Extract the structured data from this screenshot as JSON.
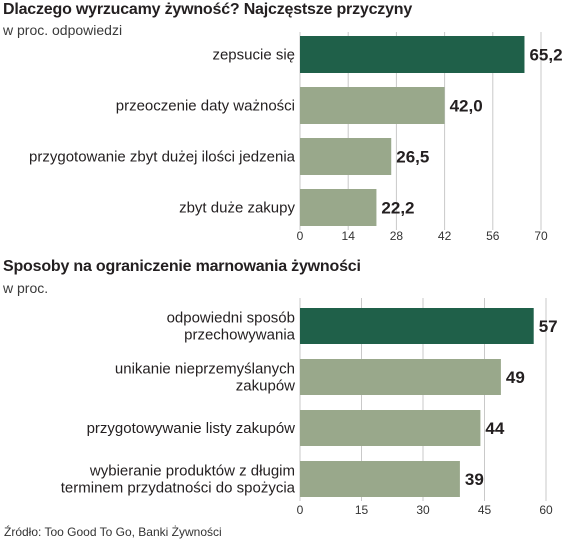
{
  "colors": {
    "highlight": "#1f6049",
    "bar": "#99a88b",
    "gridline": "#c9c9c9",
    "text": "#231f20"
  },
  "chart_data": [
    {
      "type": "bar",
      "orientation": "horizontal",
      "title": "Dlaczego wyrzucamy żywność? Najczęstsze przyczyny",
      "subtitle": "w proc. odpowiedzi",
      "categories": [
        "zepsucie się",
        "przeoczenie daty ważności",
        "przygotowanie zbyt dużej ilości jedzenia",
        "zbyt duże zakupy"
      ],
      "values": [
        65.2,
        42.0,
        26.5,
        22.2
      ],
      "value_labels": [
        "65,2",
        "42,0",
        "26,5",
        "22,2"
      ],
      "highlight_index": 0,
      "xlim": [
        0,
        70
      ],
      "xticks": [
        0,
        14,
        28,
        42,
        56,
        70
      ],
      "grid": true
    },
    {
      "type": "bar",
      "orientation": "horizontal",
      "title": "Sposoby na ograniczenie marnowania żywności",
      "subtitle": "w proc.",
      "categories": [
        [
          "odpowiedni sposób",
          "przechowywania"
        ],
        [
          "unikanie nieprzemyślanych",
          "zakupów"
        ],
        [
          "przygotowywanie listy zakupów"
        ],
        [
          "wybieranie produktów z długim",
          "terminem przydatności do spożycia"
        ]
      ],
      "values": [
        57,
        49,
        44,
        39
      ],
      "value_labels": [
        "57",
        "49",
        "44",
        "39"
      ],
      "highlight_index": 0,
      "xlim": [
        0,
        60
      ],
      "xticks": [
        0,
        15,
        30,
        45,
        60
      ],
      "grid": true
    }
  ],
  "source": "Źródło: Too Good To Go, Banki Żywności"
}
